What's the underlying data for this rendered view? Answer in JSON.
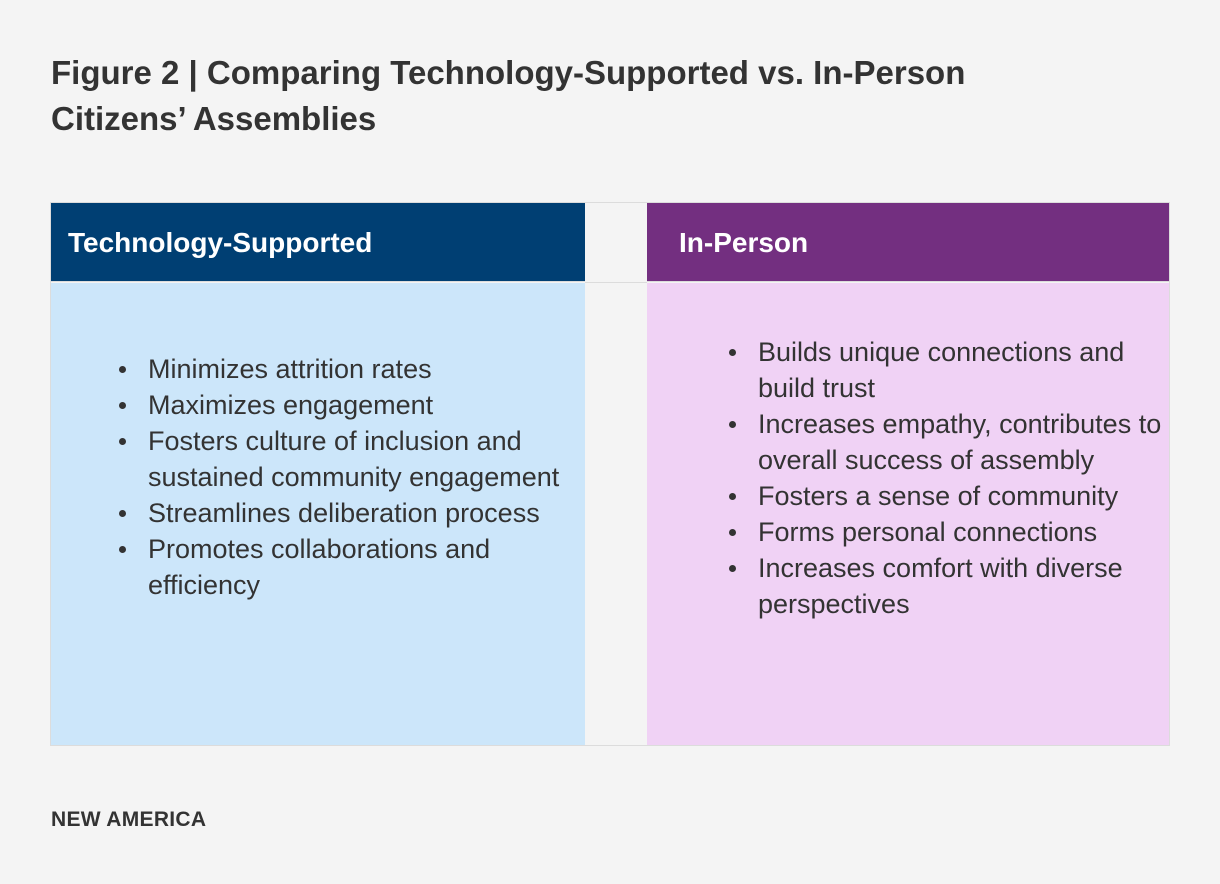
{
  "title": {
    "line1": "Figure 2 | Comparing Technology-Supported vs. In-Person",
    "line2": "Citizens’ Assemblies"
  },
  "columns": {
    "left": {
      "heading": "Technology-Supported",
      "color": "#003f73",
      "body_color": "#cce6fa",
      "items": [
        "Minimizes attrition rates",
        "Maximizes engagement",
        "Fosters culture of inclusion and sustained community engagement",
        "Streamlines deliberation process",
        "Promotes collaborations and efficiency"
      ]
    },
    "right": {
      "heading": "In-Person",
      "color": "#732f80",
      "body_color": "#f0d2f5",
      "items": [
        "Builds unique connections and build trust",
        "Increases empathy, contributes to overall success of assembly",
        "Fosters a sense of community",
        "Forms personal connections",
        "Increases comfort with diverse perspectives"
      ]
    }
  },
  "footer": {
    "brand": "NEW AMERICA"
  }
}
